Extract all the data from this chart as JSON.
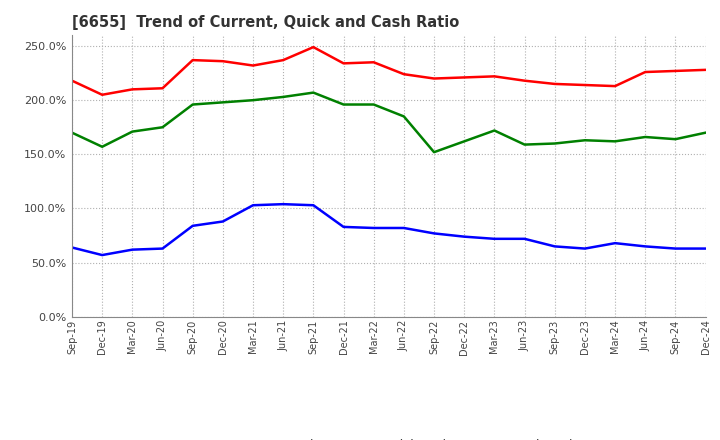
{
  "title": "[6655]  Trend of Current, Quick and Cash Ratio",
  "x_labels": [
    "Sep-19",
    "Dec-19",
    "Mar-20",
    "Jun-20",
    "Sep-20",
    "Dec-20",
    "Mar-21",
    "Jun-21",
    "Sep-21",
    "Dec-21",
    "Mar-22",
    "Jun-22",
    "Sep-22",
    "Dec-22",
    "Mar-23",
    "Jun-23",
    "Sep-23",
    "Dec-23",
    "Mar-24",
    "Jun-24",
    "Sep-24",
    "Dec-24"
  ],
  "current_ratio": [
    218,
    205,
    210,
    211,
    237,
    236,
    232,
    237,
    249,
    234,
    235,
    224,
    220,
    221,
    222,
    218,
    215,
    214,
    213,
    226,
    227,
    228
  ],
  "quick_ratio": [
    170,
    157,
    171,
    175,
    196,
    198,
    200,
    203,
    207,
    196,
    196,
    185,
    152,
    162,
    172,
    159,
    160,
    163,
    162,
    166,
    164,
    170
  ],
  "cash_ratio": [
    64,
    57,
    62,
    63,
    84,
    88,
    103,
    104,
    103,
    83,
    82,
    82,
    77,
    74,
    72,
    72,
    65,
    63,
    68,
    65,
    63,
    63
  ],
  "current_color": "#ff0000",
  "quick_color": "#008000",
  "cash_color": "#0000ff",
  "ylim": [
    0,
    260
  ],
  "yticks": [
    0,
    50,
    100,
    150,
    200,
    250
  ],
  "background_color": "#ffffff",
  "grid_color": "#b0b0b0"
}
